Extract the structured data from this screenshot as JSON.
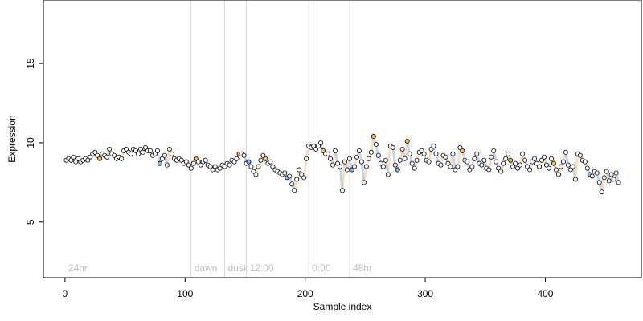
{
  "chart_data": {
    "type": "scatter",
    "xlabel": "Sample index",
    "ylabel": "Expression",
    "xlim": [
      -18,
      480
    ],
    "ylim": [
      1.5,
      19
    ],
    "x_ticks": [
      0,
      100,
      200,
      300,
      400
    ],
    "y_ticks": [
      5,
      10,
      15
    ],
    "x_tick_labels": [
      "0",
      "100",
      "200",
      "300",
      "400"
    ],
    "y_tick_labels": [
      "5",
      "10",
      "15"
    ],
    "grid": false,
    "legend": "none",
    "colors": {
      "point_fill_default": "#ffffff",
      "point_fill_orange": "#f5b95c",
      "point_fill_blue": "#8db3e2",
      "point_edge": "#000000",
      "band_orange": "#e9b77a",
      "band_blue": "#7d9fd8",
      "phase_line": "#d9d9d9",
      "phase_text": "#bdbdbd"
    },
    "phases": [
      {
        "x": 0,
        "label": "24hr"
      },
      {
        "x": 105,
        "label": "dawn"
      },
      {
        "x": 133,
        "label": "dusk"
      },
      {
        "x": 151,
        "label": "12:00"
      },
      {
        "x": 203,
        "label": "0:00"
      },
      {
        "x": 237,
        "label": "48hr"
      }
    ],
    "points": [
      [
        1,
        8.9,
        0
      ],
      [
        3,
        9.0,
        0
      ],
      [
        5,
        8.9,
        0
      ],
      [
        7,
        9.1,
        0
      ],
      [
        9,
        8.8,
        0
      ],
      [
        11,
        9.0,
        0
      ],
      [
        13,
        8.8,
        0
      ],
      [
        15,
        8.9,
        0
      ],
      [
        17,
        9.0,
        0
      ],
      [
        19,
        8.9,
        0
      ],
      [
        21,
        9.1,
        0
      ],
      [
        23,
        9.3,
        0
      ],
      [
        25,
        9.4,
        0
      ],
      [
        27,
        9.2,
        0
      ],
      [
        29,
        9.0,
        1
      ],
      [
        31,
        9.3,
        0
      ],
      [
        33,
        9.2,
        0
      ],
      [
        35,
        9.1,
        0
      ],
      [
        37,
        9.6,
        0
      ],
      [
        39,
        9.3,
        0
      ],
      [
        41,
        9.2,
        0
      ],
      [
        43,
        9.0,
        0
      ],
      [
        45,
        9.1,
        0
      ],
      [
        47,
        9.0,
        0
      ],
      [
        49,
        9.5,
        0
      ],
      [
        51,
        9.6,
        0
      ],
      [
        53,
        9.4,
        0
      ],
      [
        55,
        9.3,
        0
      ],
      [
        57,
        9.6,
        0
      ],
      [
        59,
        9.5,
        0
      ],
      [
        61,
        9.3,
        0
      ],
      [
        63,
        9.6,
        0
      ],
      [
        65,
        9.4,
        0
      ],
      [
        67,
        9.7,
        0
      ],
      [
        69,
        9.5,
        0
      ],
      [
        71,
        9.5,
        0
      ],
      [
        73,
        9.2,
        0
      ],
      [
        75,
        9.3,
        0
      ],
      [
        77,
        9.5,
        0
      ],
      [
        79,
        8.7,
        2
      ],
      [
        81,
        9.0,
        0
      ],
      [
        83,
        9.2,
        0
      ],
      [
        85,
        8.6,
        0
      ],
      [
        87,
        9.6,
        0
      ],
      [
        89,
        9.3,
        0
      ],
      [
        91,
        9.0,
        0
      ],
      [
        93,
        8.9,
        0
      ],
      [
        95,
        9.0,
        0
      ],
      [
        97,
        8.9,
        0
      ],
      [
        99,
        8.7,
        0
      ],
      [
        101,
        8.8,
        0
      ],
      [
        103,
        8.6,
        0
      ],
      [
        105,
        8.4,
        0
      ],
      [
        107,
        8.7,
        0
      ],
      [
        109,
        9.0,
        1
      ],
      [
        111,
        8.8,
        0
      ],
      [
        113,
        8.6,
        0
      ],
      [
        115,
        8.8,
        0
      ],
      [
        117,
        8.9,
        0
      ],
      [
        119,
        8.6,
        0
      ],
      [
        121,
        8.5,
        0
      ],
      [
        123,
        8.3,
        0
      ],
      [
        125,
        8.5,
        0
      ],
      [
        127,
        8.3,
        0
      ],
      [
        129,
        8.4,
        0
      ],
      [
        131,
        8.6,
        0
      ],
      [
        133,
        8.5,
        0
      ],
      [
        135,
        8.7,
        0
      ],
      [
        137,
        8.6,
        0
      ],
      [
        139,
        8.9,
        0
      ],
      [
        141,
        8.8,
        0
      ],
      [
        143,
        9.0,
        0
      ],
      [
        145,
        9.3,
        1
      ],
      [
        147,
        9.3,
        0
      ],
      [
        149,
        9.2,
        0
      ],
      [
        151,
        8.7,
        0
      ],
      [
        153,
        8.8,
        2
      ],
      [
        155,
        8.5,
        0
      ],
      [
        157,
        8.2,
        0
      ],
      [
        159,
        8.0,
        0
      ],
      [
        161,
        8.5,
        0
      ],
      [
        163,
        8.9,
        0
      ],
      [
        165,
        9.2,
        0
      ],
      [
        167,
        9.0,
        1
      ],
      [
        169,
        8.7,
        0
      ],
      [
        171,
        8.8,
        0
      ],
      [
        173,
        8.5,
        0
      ],
      [
        175,
        8.3,
        0
      ],
      [
        177,
        8.2,
        0
      ],
      [
        179,
        8.1,
        0
      ],
      [
        181,
        8.0,
        0
      ],
      [
        183,
        8.1,
        0
      ],
      [
        185,
        7.8,
        2
      ],
      [
        187,
        7.9,
        0
      ],
      [
        189,
        7.4,
        0
      ],
      [
        191,
        7.0,
        0
      ],
      [
        193,
        7.7,
        0
      ],
      [
        195,
        8.3,
        0
      ],
      [
        197,
        8.0,
        0
      ],
      [
        199,
        7.8,
        0
      ],
      [
        201,
        9.0,
        0
      ],
      [
        203,
        9.8,
        0
      ],
      [
        205,
        9.7,
        0
      ],
      [
        207,
        9.8,
        0
      ],
      [
        209,
        9.6,
        0
      ],
      [
        211,
        9.8,
        0
      ],
      [
        213,
        10.0,
        0
      ],
      [
        215,
        9.5,
        1
      ],
      [
        217,
        9.3,
        0
      ],
      [
        219,
        9.3,
        0
      ],
      [
        221,
        9.0,
        0
      ],
      [
        223,
        8.6,
        0
      ],
      [
        225,
        9.5,
        0
      ],
      [
        227,
        8.7,
        0
      ],
      [
        229,
        8.5,
        0
      ],
      [
        231,
        7.0,
        0
      ],
      [
        233,
        8.8,
        0
      ],
      [
        235,
        8.3,
        0
      ],
      [
        237,
        9.0,
        0
      ],
      [
        239,
        8.3,
        2
      ],
      [
        241,
        8.5,
        0
      ],
      [
        243,
        9.1,
        0
      ],
      [
        245,
        9.5,
        0
      ],
      [
        247,
        8.8,
        0
      ],
      [
        249,
        7.5,
        0
      ],
      [
        251,
        8.5,
        0
      ],
      [
        253,
        9.0,
        0
      ],
      [
        255,
        9.4,
        0
      ],
      [
        257,
        10.4,
        1
      ],
      [
        259,
        9.9,
        0
      ],
      [
        261,
        9.2,
        0
      ],
      [
        263,
        8.7,
        0
      ],
      [
        265,
        8.5,
        0
      ],
      [
        267,
        8.9,
        0
      ],
      [
        269,
        8.0,
        0
      ],
      [
        271,
        9.8,
        0
      ],
      [
        273,
        9.7,
        0
      ],
      [
        275,
        8.6,
        0
      ],
      [
        277,
        8.3,
        2
      ],
      [
        279,
        8.9,
        0
      ],
      [
        281,
        9.6,
        0
      ],
      [
        283,
        9.0,
        0
      ],
      [
        285,
        10.1,
        1
      ],
      [
        287,
        9.3,
        0
      ],
      [
        289,
        8.7,
        0
      ],
      [
        291,
        8.4,
        0
      ],
      [
        293,
        8.9,
        0
      ],
      [
        295,
        9.4,
        0
      ],
      [
        297,
        9.5,
        0
      ],
      [
        299,
        9.3,
        0
      ],
      [
        301,
        8.9,
        0
      ],
      [
        303,
        8.8,
        0
      ],
      [
        305,
        9.6,
        0
      ],
      [
        307,
        9.8,
        0
      ],
      [
        309,
        9.3,
        0
      ],
      [
        311,
        8.7,
        0
      ],
      [
        313,
        8.6,
        0
      ],
      [
        315,
        9.2,
        0
      ],
      [
        317,
        9.1,
        0
      ],
      [
        319,
        8.7,
        0
      ],
      [
        321,
        8.5,
        0
      ],
      [
        323,
        9.3,
        0
      ],
      [
        325,
        8.3,
        0
      ],
      [
        327,
        8.5,
        0
      ],
      [
        329,
        9.7,
        0
      ],
      [
        331,
        9.5,
        1
      ],
      [
        333,
        8.9,
        0
      ],
      [
        335,
        8.8,
        0
      ],
      [
        337,
        8.3,
        0
      ],
      [
        339,
        8.5,
        0
      ],
      [
        341,
        9.0,
        0
      ],
      [
        343,
        9.3,
        0
      ],
      [
        345,
        8.7,
        0
      ],
      [
        347,
        8.6,
        0
      ],
      [
        349,
        8.9,
        0
      ],
      [
        351,
        8.4,
        0
      ],
      [
        353,
        8.3,
        0
      ],
      [
        355,
        9.1,
        0
      ],
      [
        357,
        9.5,
        0
      ],
      [
        359,
        8.8,
        0
      ],
      [
        361,
        8.4,
        0
      ],
      [
        363,
        8.2,
        0
      ],
      [
        365,
        8.7,
        0
      ],
      [
        367,
        9.0,
        0
      ],
      [
        369,
        9.3,
        0
      ],
      [
        371,
        8.9,
        1
      ],
      [
        373,
        8.5,
        0
      ],
      [
        375,
        8.7,
        0
      ],
      [
        377,
        8.4,
        0
      ],
      [
        379,
        8.6,
        0
      ],
      [
        381,
        9.3,
        0
      ],
      [
        383,
        8.9,
        0
      ],
      [
        385,
        8.5,
        0
      ],
      [
        387,
        8.3,
        0
      ],
      [
        389,
        8.8,
        0
      ],
      [
        391,
        9.0,
        0
      ],
      [
        393,
        8.7,
        0
      ],
      [
        395,
        8.5,
        0
      ],
      [
        397,
        8.9,
        0
      ],
      [
        399,
        9.1,
        0
      ],
      [
        401,
        8.6,
        0
      ],
      [
        403,
        8.4,
        0
      ],
      [
        405,
        9.0,
        0
      ],
      [
        407,
        8.7,
        1
      ],
      [
        409,
        8.3,
        0
      ],
      [
        411,
        8.0,
        0
      ],
      [
        413,
        8.5,
        0
      ],
      [
        415,
        8.8,
        0
      ],
      [
        417,
        9.4,
        0
      ],
      [
        419,
        8.6,
        0
      ],
      [
        421,
        8.3,
        0
      ],
      [
        423,
        8.5,
        0
      ],
      [
        425,
        7.7,
        0
      ],
      [
        427,
        9.3,
        0
      ],
      [
        429,
        9.2,
        0
      ],
      [
        431,
        8.9,
        0
      ],
      [
        433,
        8.8,
        0
      ],
      [
        435,
        8.4,
        0
      ],
      [
        437,
        8.0,
        2
      ],
      [
        439,
        7.9,
        0
      ],
      [
        441,
        8.2,
        0
      ],
      [
        443,
        8.1,
        0
      ],
      [
        445,
        7.5,
        0
      ],
      [
        447,
        6.9,
        0
      ],
      [
        449,
        7.8,
        0
      ],
      [
        451,
        8.2,
        0
      ],
      [
        453,
        7.6,
        0
      ],
      [
        455,
        8.0,
        0
      ],
      [
        457,
        7.7,
        0
      ],
      [
        459,
        8.1,
        0
      ],
      [
        461,
        7.5,
        0
      ]
    ]
  }
}
